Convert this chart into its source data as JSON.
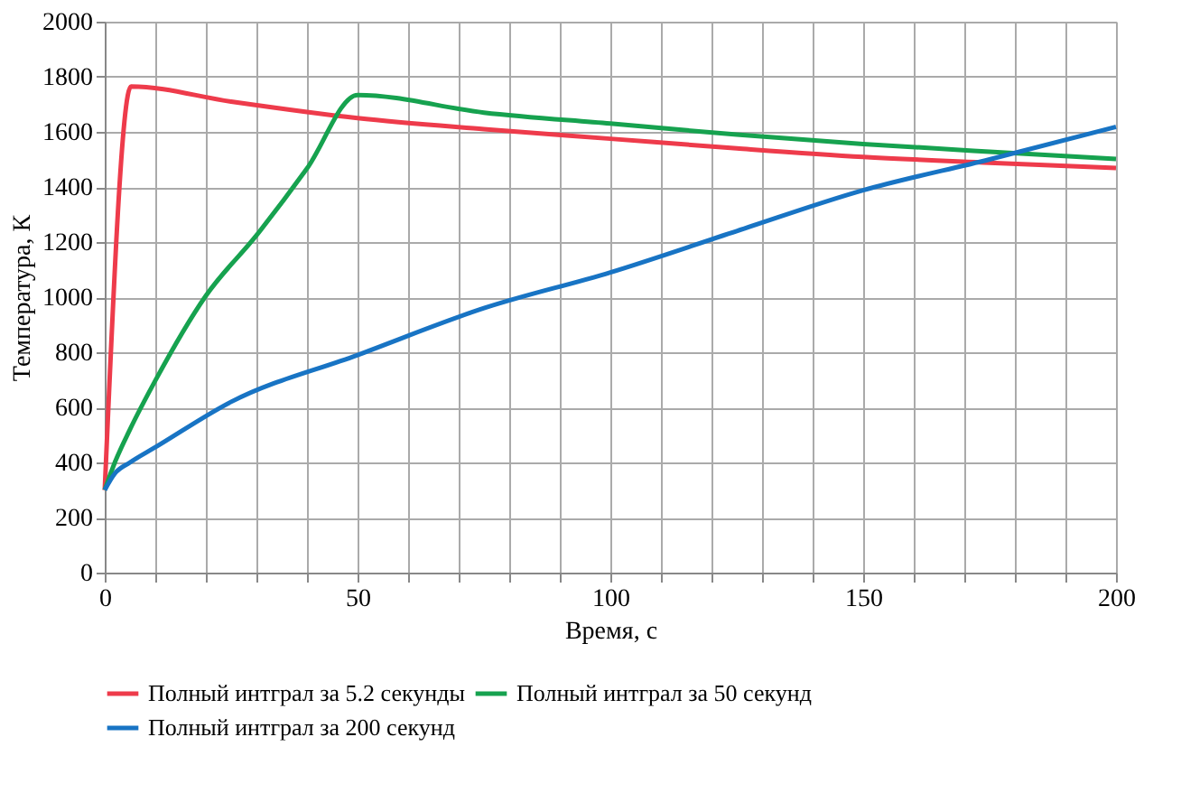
{
  "chart_data": {
    "type": "line",
    "xlabel": "Время, с",
    "ylabel": "Температура, К",
    "xlim": [
      0,
      200
    ],
    "ylim": [
      0,
      2000
    ],
    "xticks": [
      0,
      {
        "value": 10,
        "label": null
      },
      {
        "value": 20,
        "label": null
      },
      {
        "value": 30,
        "label": null
      },
      {
        "value": 40,
        "label": null
      },
      50,
      {
        "value": 60,
        "label": null
      },
      {
        "value": 70,
        "label": null
      },
      {
        "value": 80,
        "label": null
      },
      {
        "value": 90,
        "label": null
      },
      100,
      {
        "value": 110,
        "label": null
      },
      {
        "value": 120,
        "label": null
      },
      {
        "value": 130,
        "label": null
      },
      {
        "value": 140,
        "label": null
      },
      150,
      {
        "value": 160,
        "label": null
      },
      {
        "value": 170,
        "label": null
      },
      {
        "value": 180,
        "label": null
      },
      {
        "value": 190,
        "label": null
      },
      200
    ],
    "yticks": [
      0,
      200,
      400,
      600,
      800,
      1000,
      1200,
      1400,
      1600,
      1800,
      2000
    ],
    "grid": true,
    "legend": "bottom",
    "marker": "none",
    "line_style": "solid",
    "series": [
      {
        "name": "Полный интграл за 5.2 секунды",
        "color": "#ee3b4b",
        "x": [
          0,
          5.2,
          25,
          50,
          75,
          100,
          125,
          150,
          175,
          200
        ],
        "values": [
          300,
          1765,
          1710,
          1650,
          1610,
          1575,
          1540,
          1509,
          1488,
          1469
        ]
      },
      {
        "name": "Полный интграл за 50 секунд",
        "color": "#16a24f",
        "x": [
          0,
          2,
          5,
          10,
          20,
          30,
          40,
          50,
          75,
          100,
          125,
          150,
          175,
          200
        ],
        "values": [
          300,
          400,
          520,
          697,
          1005,
          1224,
          1467,
          1734,
          1670,
          1630,
          1590,
          1556,
          1528,
          1502
        ]
      },
      {
        "name": "Полный интграл за 200 секунд",
        "color": "#1874c4",
        "x": [
          0,
          2,
          5,
          10,
          25,
          50,
          75,
          100,
          125,
          150,
          175,
          200
        ],
        "values": [
          300,
          360,
          400,
          455,
          620,
          790,
          960,
          1090,
          1240,
          1388,
          1500,
          1618
        ]
      }
    ]
  }
}
